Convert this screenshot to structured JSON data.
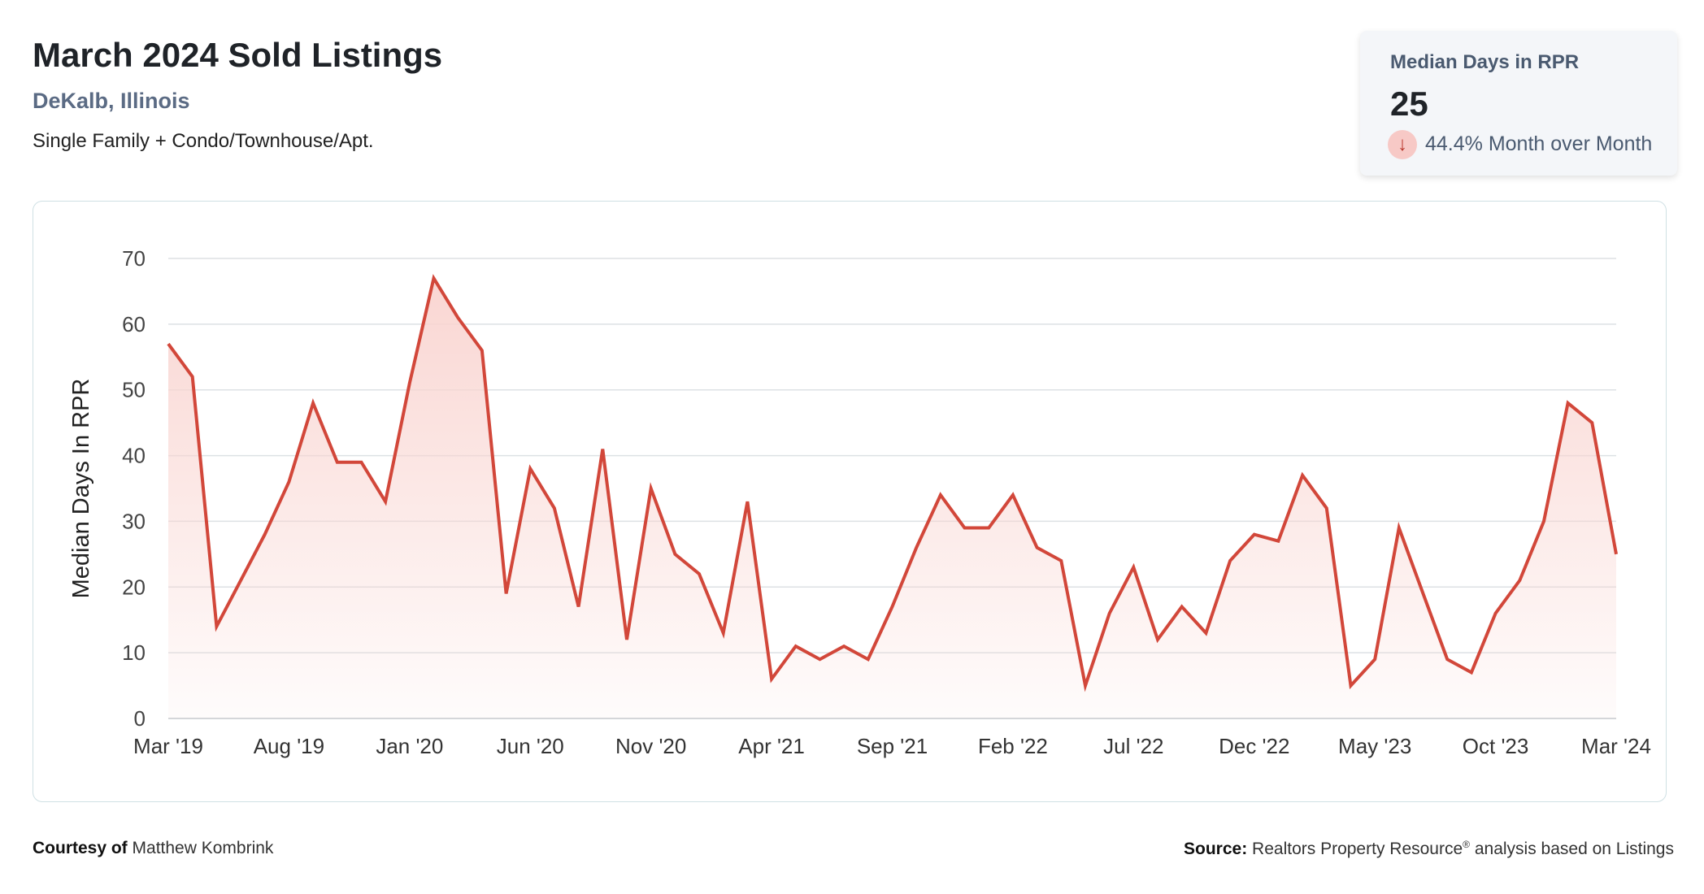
{
  "header": {
    "title": "March 2024 Sold Listings",
    "location": "DeKalb, Illinois",
    "property_types": "Single Family + Condo/Townhouse/Apt."
  },
  "stat": {
    "label": "Median Days in RPR",
    "value": "25",
    "change": "44.4% Month over Month",
    "direction": "down",
    "arrow_icon": "arrow-down-icon"
  },
  "footer": {
    "courtesy_label": "Courtesy of",
    "courtesy_name": "Matthew Kombrink",
    "source_label": "Source:",
    "source_text_1": "Realtors Property Resource",
    "source_mark": "®",
    "source_text_2": " analysis based on Listings"
  },
  "colors": {
    "line": "#d2473a",
    "fill": "#f9d4d0",
    "grid": "#dde1e4",
    "text": "#444444"
  },
  "chart_data": {
    "type": "area",
    "title": "",
    "xlabel": "",
    "ylabel": "Median Days In RPR",
    "ylim": [
      0,
      70
    ],
    "yticks": [
      0,
      10,
      20,
      30,
      40,
      50,
      60,
      70
    ],
    "grid": true,
    "x_tick_labels": [
      "Mar '19",
      "Aug '19",
      "Jan '20",
      "Jun '20",
      "Nov '20",
      "Apr '21",
      "Sep '21",
      "Feb '22",
      "Jul '22",
      "Dec '22",
      "May '23",
      "Oct '23",
      "Mar '24"
    ],
    "x_start": "2019-03",
    "x_end": "2024-03",
    "series": [
      {
        "values": [
          57,
          52,
          14,
          21,
          28,
          36,
          48,
          39,
          39,
          33,
          51,
          67,
          61,
          56,
          19,
          38,
          32,
          17,
          41,
          12,
          35,
          25,
          22,
          13,
          33,
          6,
          11,
          9,
          11,
          9,
          17,
          26,
          34,
          29,
          29,
          34,
          26,
          24,
          5,
          16,
          23,
          12,
          17,
          13,
          24,
          28,
          27,
          37,
          32,
          5,
          9,
          29,
          19,
          9,
          7,
          16,
          21,
          30,
          48,
          45,
          25
        ]
      }
    ]
  }
}
